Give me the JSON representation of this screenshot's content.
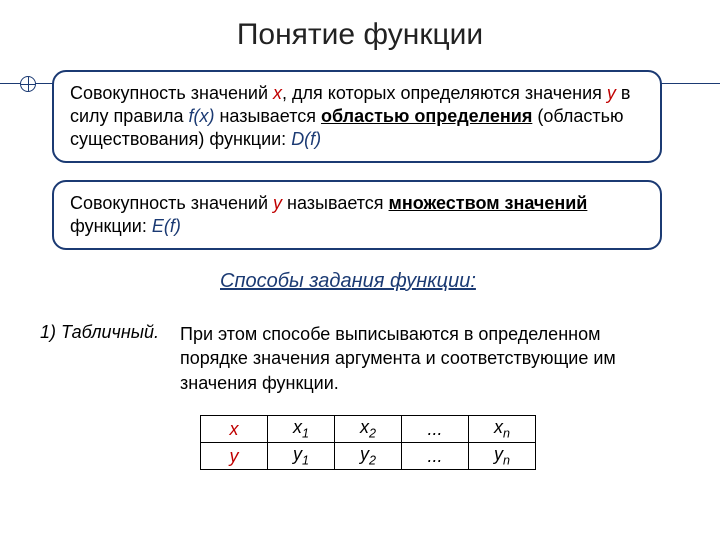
{
  "title": "Понятие функции",
  "callout1": {
    "pre1": "Совокупность значений ",
    "x": "x",
    "mid1": ",  для которых определяются значения ",
    "y": "y",
    "mid2": "  в силу правила ",
    "fx": "f(x)",
    "mid3": " называется ",
    "term": "областью определения",
    "post1": " (областью существования) функции: ",
    "df": "D(f)"
  },
  "callout2": {
    "pre1": "Совокупность значений ",
    "y": "y",
    "mid1": " называется ",
    "term": "множеством значений",
    "post1": " функции: ",
    "ef": "E(f)"
  },
  "sub_title": "Способы задания функции:",
  "method1_label": "1) Табличный.",
  "method1_desc": "При этом способе выписываются в определенном порядке значения аргумента и соответствующие им значения функции.",
  "table": {
    "row_x_head": "x",
    "row_y_head": "y",
    "x1_base": "x",
    "x1_sub": "1",
    "x2_base": "x",
    "x2_sub": "2",
    "dots": "...",
    "xn_base": "x",
    "xn_sub": "n",
    "y1_base": "y",
    "y1_sub": "1",
    "y2_base": "y",
    "y2_sub": "2",
    "yn_base": "y",
    "yn_sub": "n"
  },
  "colors": {
    "border": "#1b3a73",
    "var": "#c00000",
    "text": "#000000",
    "background": "#ffffff"
  }
}
